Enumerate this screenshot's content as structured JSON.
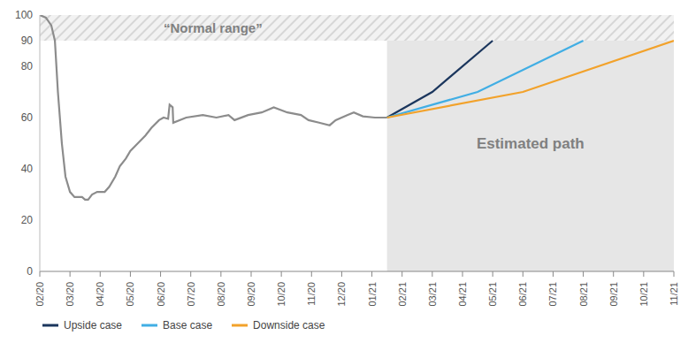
{
  "chart_data": {
    "type": "line",
    "xlim": [
      0,
      21
    ],
    "xticks": [
      {
        "value": 0,
        "label": "02/20"
      },
      {
        "value": 1,
        "label": "03/20"
      },
      {
        "value": 2,
        "label": "04/20"
      },
      {
        "value": 3,
        "label": "05/20"
      },
      {
        "value": 4,
        "label": "06/20"
      },
      {
        "value": 5,
        "label": "07/20"
      },
      {
        "value": 6,
        "label": "08/20"
      },
      {
        "value": 7,
        "label": "09/20"
      },
      {
        "value": 8,
        "label": "10/20"
      },
      {
        "value": 9,
        "label": "11/20"
      },
      {
        "value": 10,
        "label": "12/20"
      },
      {
        "value": 11,
        "label": "01/21"
      },
      {
        "value": 12,
        "label": "02/21"
      },
      {
        "value": 13,
        "label": "03/21"
      },
      {
        "value": 14,
        "label": "04/21"
      },
      {
        "value": 15,
        "label": "05/21"
      },
      {
        "value": 16,
        "label": "06/21"
      },
      {
        "value": 17,
        "label": "07/21"
      },
      {
        "value": 18,
        "label": "08/21"
      },
      {
        "value": 19,
        "label": "09/21"
      },
      {
        "value": 20,
        "label": "10/21"
      },
      {
        "value": 21,
        "label": "11/21"
      }
    ],
    "ylim": [
      0,
      100
    ],
    "yticks": [
      0,
      20,
      40,
      60,
      80,
      90,
      100
    ],
    "grid": false,
    "legend": "bottom left",
    "annotations": [
      {
        "text": "“Normal range”",
        "y_range": [
          90,
          100
        ]
      },
      {
        "text": "Estimated path",
        "x_range": [
          11.5,
          21
        ]
      }
    ],
    "series": [
      {
        "color": "#8c8c8c",
        "x": [
          0,
          0.2,
          0.38,
          0.5,
          0.6,
          0.73,
          0.85,
          1,
          1.15,
          1.4,
          1.5,
          1.6,
          1.73,
          1.9,
          2.15,
          2.3,
          2.5,
          2.65,
          2.85,
          3,
          3.25,
          3.5,
          3.7,
          3.95,
          4.1,
          4.25,
          4.3,
          4.4,
          4.42,
          4.85,
          5.4,
          5.85,
          6.25,
          6.45,
          6.9,
          7.35,
          7.75,
          8.2,
          8.65,
          8.9,
          9.25,
          9.6,
          9.8,
          10.2,
          10.4,
          10.7,
          11.1,
          11.5
        ],
        "values": [
          100,
          99,
          96,
          90,
          70,
          50,
          37,
          31,
          29,
          29,
          28,
          28,
          30,
          31,
          31,
          33,
          37,
          41,
          44,
          47,
          50,
          53,
          56,
          59,
          60,
          59.5,
          65,
          64,
          58,
          60,
          61,
          60,
          61,
          59,
          61,
          62,
          64,
          62,
          61,
          59,
          58,
          57,
          59,
          61,
          62,
          60.5,
          60,
          60
        ]
      },
      {
        "name": "Upside case",
        "color": "#1b365d",
        "x": [
          11.5,
          13,
          15
        ],
        "values": [
          60,
          70,
          90
        ]
      },
      {
        "name": "Base case",
        "color": "#41aee4",
        "x": [
          11.5,
          14.5,
          18
        ],
        "values": [
          60,
          70,
          90
        ]
      },
      {
        "name": "Downside case",
        "color": "#f2a22b",
        "x": [
          11.5,
          16,
          21
        ],
        "values": [
          60,
          70,
          90
        ]
      }
    ]
  }
}
